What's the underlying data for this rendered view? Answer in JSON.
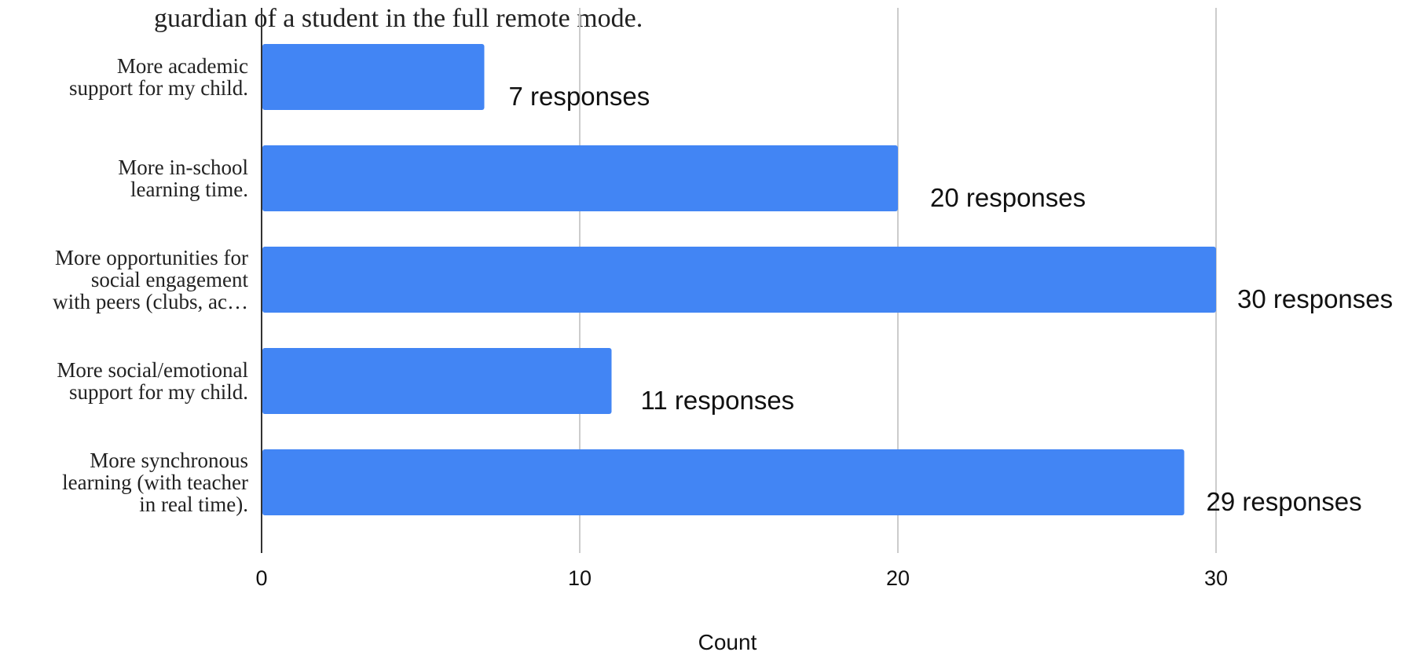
{
  "chart_data": {
    "type": "bar",
    "orientation": "horizontal",
    "title": "guardian of a student in the full remote mode.",
    "categories": [
      [
        "More academic",
        "support for my child."
      ],
      [
        "More in-school",
        "learning time."
      ],
      [
        "More opportunities for",
        "social engagement",
        "with peers (clubs, ac…"
      ],
      [
        "More social/emotional",
        "support for my child."
      ],
      [
        "More synchronous",
        "learning (with teacher",
        "in real time)."
      ]
    ],
    "values": [
      7,
      20,
      30,
      11,
      29
    ],
    "data_labels": [
      "7 responses",
      "20 responses",
      "30 responses",
      "11 responses",
      "29 responses"
    ],
    "xlabel": "Count",
    "ylabel": "",
    "xlim": [
      0,
      30
    ],
    "xticks": [
      0,
      10,
      20,
      30
    ],
    "xtick_labels": [
      "0",
      "10",
      "20",
      "30"
    ],
    "grid": true,
    "colors": {
      "bar": "#4285f4",
      "grid": "#cccccc",
      "axis": "#333333"
    }
  }
}
